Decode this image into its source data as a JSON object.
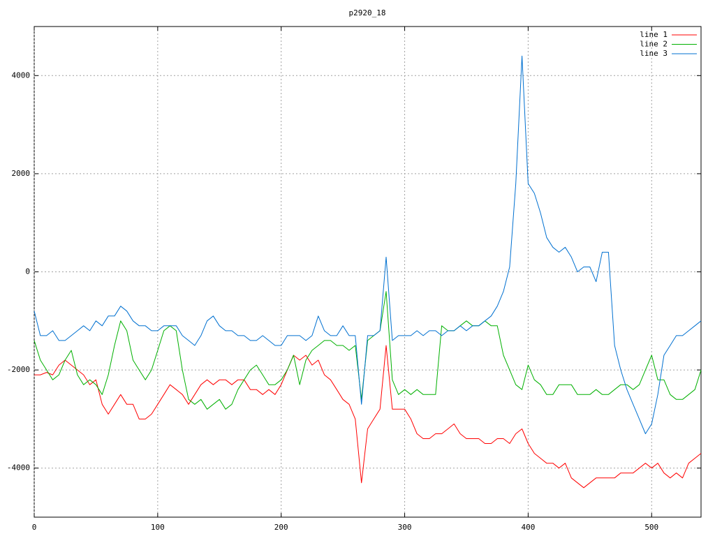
{
  "chart_data": {
    "type": "line",
    "title": "p2920_18",
    "x": [
      0,
      5,
      10,
      15,
      20,
      25,
      30,
      35,
      40,
      45,
      50,
      55,
      60,
      65,
      70,
      75,
      80,
      85,
      90,
      95,
      100,
      105,
      110,
      115,
      120,
      125,
      130,
      135,
      140,
      145,
      150,
      155,
      160,
      165,
      170,
      175,
      180,
      185,
      190,
      195,
      200,
      205,
      210,
      215,
      220,
      225,
      230,
      235,
      240,
      245,
      250,
      255,
      260,
      265,
      270,
      275,
      280,
      285,
      290,
      295,
      300,
      305,
      310,
      315,
      320,
      325,
      330,
      335,
      340,
      345,
      350,
      355,
      360,
      365,
      370,
      375,
      380,
      385,
      390,
      395,
      400,
      405,
      410,
      415,
      420,
      425,
      430,
      435,
      440,
      445,
      450,
      455,
      460,
      465,
      470,
      475,
      480,
      485,
      490,
      495,
      500,
      505,
      510,
      515,
      520,
      525,
      530,
      535,
      540
    ],
    "series": [
      {
        "name": "line 1",
        "color": "#ff0000",
        "values": [
          -2100,
          -2100,
          -2050,
          -2100,
          -1900,
          -1800,
          -1900,
          -2000,
          -2100,
          -2300,
          -2200,
          -2700,
          -2900,
          -2700,
          -2500,
          -2700,
          -2700,
          -3000,
          -3000,
          -2900,
          -2700,
          -2500,
          -2300,
          -2400,
          -2500,
          -2700,
          -2500,
          -2300,
          -2200,
          -2300,
          -2200,
          -2200,
          -2300,
          -2200,
          -2200,
          -2400,
          -2400,
          -2500,
          -2400,
          -2500,
          -2300,
          -2000,
          -1700,
          -1800,
          -1700,
          -1900,
          -1800,
          -2100,
          -2200,
          -2400,
          -2600,
          -2700,
          -3000,
          -4300,
          -3200,
          -3000,
          -2800,
          -1500,
          -2800,
          -2800,
          -2800,
          -3000,
          -3300,
          -3400,
          -3400,
          -3300,
          -3300,
          -3200,
          -3100,
          -3300,
          -3400,
          -3400,
          -3400,
          -3500,
          -3500,
          -3400,
          -3400,
          -3500,
          -3300,
          -3200,
          -3500,
          -3700,
          -3800,
          -3900,
          -3900,
          -4000,
          -3900,
          -4200,
          -4300,
          -4400,
          -4300,
          -4200,
          -4200,
          -4200,
          -4200,
          -4100,
          -4100,
          -4100,
          -4000,
          -3900,
          -4000,
          -3900,
          -4100,
          -4200,
          -4100,
          -4200,
          -3900,
          -3800,
          -3700
        ]
      },
      {
        "name": "line 2",
        "color": "#00b000",
        "values": [
          -1400,
          -1800,
          -2000,
          -2200,
          -2100,
          -1800,
          -1600,
          -2100,
          -2300,
          -2200,
          -2300,
          -2500,
          -2100,
          -1500,
          -1000,
          -1200,
          -1800,
          -2000,
          -2200,
          -2000,
          -1600,
          -1200,
          -1100,
          -1200,
          -2000,
          -2600,
          -2700,
          -2600,
          -2800,
          -2700,
          -2600,
          -2800,
          -2700,
          -2400,
          -2200,
          -2000,
          -1900,
          -2100,
          -2300,
          -2300,
          -2200,
          -2000,
          -1700,
          -2300,
          -1800,
          -1600,
          -1500,
          -1400,
          -1400,
          -1500,
          -1500,
          -1600,
          -1500,
          -2600,
          -1400,
          -1300,
          -1200,
          -400,
          -2200,
          -2500,
          -2400,
          -2500,
          -2400,
          -2500,
          -2500,
          -2500,
          -1100,
          -1200,
          -1200,
          -1100,
          -1000,
          -1100,
          -1100,
          -1000,
          -1100,
          -1100,
          -1700,
          -2000,
          -2300,
          -2400,
          -1900,
          -2200,
          -2300,
          -2500,
          -2500,
          -2300,
          -2300,
          -2300,
          -2500,
          -2500,
          -2500,
          -2400,
          -2500,
          -2500,
          -2400,
          -2300,
          -2300,
          -2400,
          -2300,
          -2000,
          -1700,
          -2200,
          -2200,
          -2500,
          -2600,
          -2600,
          -2500,
          -2400,
          -2000
        ]
      },
      {
        "name": "line 3",
        "color": "#0070d0",
        "values": [
          -800,
          -1300,
          -1300,
          -1200,
          -1400,
          -1400,
          -1300,
          -1200,
          -1100,
          -1200,
          -1000,
          -1100,
          -900,
          -900,
          -700,
          -800,
          -1000,
          -1100,
          -1100,
          -1200,
          -1200,
          -1100,
          -1100,
          -1100,
          -1300,
          -1400,
          -1500,
          -1300,
          -1000,
          -900,
          -1100,
          -1200,
          -1200,
          -1300,
          -1300,
          -1400,
          -1400,
          -1300,
          -1400,
          -1500,
          -1500,
          -1300,
          -1300,
          -1300,
          -1400,
          -1300,
          -900,
          -1200,
          -1300,
          -1300,
          -1100,
          -1300,
          -1300,
          -2700,
          -1300,
          -1300,
          -1200,
          300,
          -1400,
          -1300,
          -1300,
          -1300,
          -1200,
          -1300,
          -1200,
          -1200,
          -1300,
          -1200,
          -1200,
          -1100,
          -1200,
          -1100,
          -1100,
          -1000,
          -900,
          -700,
          -400,
          100,
          1800,
          4400,
          1800,
          1600,
          1200,
          700,
          500,
          400,
          500,
          300,
          0,
          100,
          100,
          -200,
          400,
          400,
          -1500,
          -2000,
          -2400,
          -2700,
          -3000,
          -3300,
          -3100,
          -2500,
          -1700,
          -1500,
          -1300,
          -1300,
          -1200,
          -1100,
          -1000
        ]
      }
    ],
    "xlim": [
      0,
      540
    ],
    "ylim": [
      -5000,
      5000
    ],
    "xticks": [
      0,
      100,
      200,
      300,
      400,
      500
    ],
    "yticks": [
      -4000,
      -2000,
      0,
      2000,
      4000
    ],
    "grid": true,
    "legend": "top-right"
  }
}
